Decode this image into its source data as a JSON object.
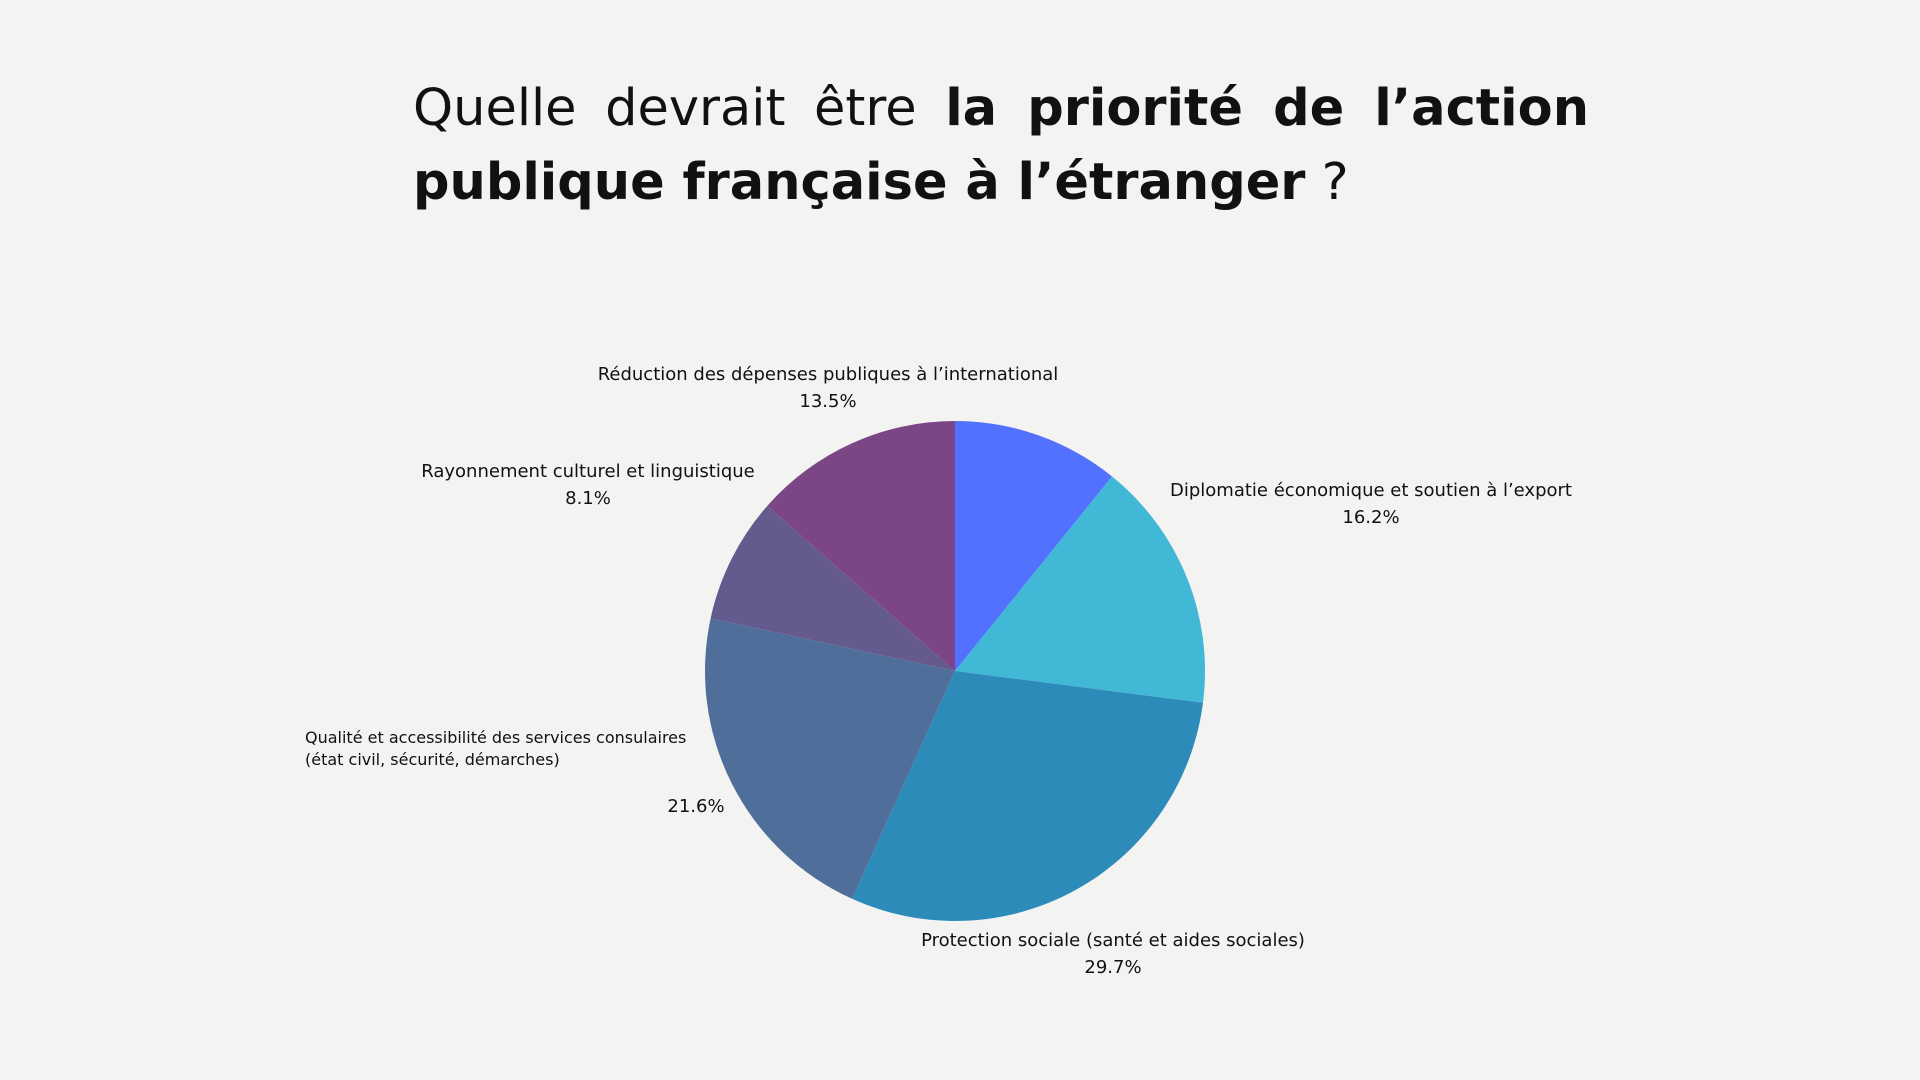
{
  "title": {
    "part1": "Quelle devrait être ",
    "part2": "la priorité de l’action publique française à l’étranger",
    "part3": " ?"
  },
  "chart_data": {
    "type": "pie",
    "start": "top",
    "direction": "clockwise",
    "slices": [
      {
        "label": "",
        "value": 10.8,
        "value_label": "",
        "color": "#5271ff"
      },
      {
        "label": "Diplomatie économique et soutien à l’export",
        "value": 16.2,
        "value_label": "16.2%",
        "color": "#41b8d5"
      },
      {
        "label": "Protection sociale (santé et aides sociales)",
        "value": 29.7,
        "value_label": "29.7%",
        "color": "#2d8bba"
      },
      {
        "label": "Qualité et accessibilité des services consulaires (état civil, sécurité, démarches)",
        "label_line1": "Qualité et accessibilité des services consulaires",
        "label_line2": "(état civil, sécurité, démarches)",
        "value": 21.6,
        "value_label": "21.6%",
        "color": "#4f6f9a"
      },
      {
        "label": "Rayonnement culturel et linguistique",
        "value": 8.1,
        "value_label": "8.1%",
        "color": "#655a8e"
      },
      {
        "label": "Réduction des dépenses publiques à l’international",
        "value": 13.5,
        "value_label": "13.5%",
        "color": "#7c4585"
      }
    ]
  }
}
